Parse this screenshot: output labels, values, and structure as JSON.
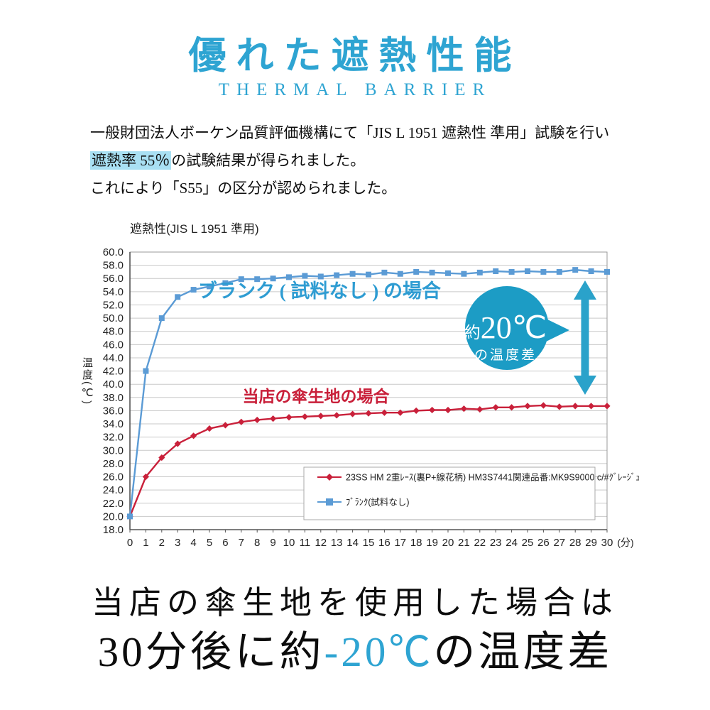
{
  "header": {
    "title": "優れた遮熱性能",
    "subtitle": "THERMAL BARRIER"
  },
  "intro": {
    "line1": "一般財団法人ボーケン品質評価機構にて「JIS L 1951 遮熱性 準用」試験を行い",
    "line2_highlight": "遮熱率 55％",
    "line2_rest": "の試験結果が得られました。",
    "line3": "これにより「S55」の区分が認められました。"
  },
  "chart_data": {
    "type": "line",
    "title": "遮熱性(JIS L 1951 準用)",
    "x_unit_label": "(分)",
    "y_axis_label": "温度(℃)",
    "x": [
      0,
      1,
      2,
      3,
      4,
      5,
      6,
      7,
      8,
      9,
      10,
      11,
      12,
      13,
      14,
      15,
      16,
      17,
      18,
      19,
      20,
      21,
      22,
      23,
      24,
      25,
      26,
      27,
      28,
      29,
      30
    ],
    "ylim": [
      18.0,
      60.0
    ],
    "y_tick_step": 2.0,
    "grid": true,
    "legend_position": "inside-bottom-right",
    "series": [
      {
        "name": "23SS HM 2重ﾚｰｽ(裏P+線花柄) HM3S7441関連品番:MK9S9000 c/#ｸﾞﾚｰｼﾞｭ",
        "color": "#c9203a",
        "marker": "diamond",
        "values": [
          20.0,
          26.0,
          28.9,
          31.0,
          32.2,
          33.3,
          33.8,
          34.3,
          34.6,
          34.8,
          35.0,
          35.1,
          35.2,
          35.3,
          35.5,
          35.6,
          35.7,
          35.7,
          36.0,
          36.1,
          36.1,
          36.3,
          36.2,
          36.5,
          36.5,
          36.7,
          36.8,
          36.6,
          36.7,
          36.7,
          36.7
        ]
      },
      {
        "name": "ﾌﾞﾗﾝｸ(試料なし)",
        "color": "#5b9bd5",
        "marker": "square",
        "values": [
          20.0,
          42.0,
          50.0,
          53.2,
          54.3,
          54.8,
          55.3,
          55.9,
          55.9,
          56.0,
          56.2,
          56.4,
          56.3,
          56.5,
          56.7,
          56.6,
          56.9,
          56.7,
          57.0,
          56.9,
          56.8,
          56.7,
          56.9,
          57.1,
          57.0,
          57.1,
          57.0,
          57.0,
          57.3,
          57.1,
          57.0
        ]
      }
    ],
    "series_labels": [
      {
        "text": "ブランク ( 試料なし ) の場合",
        "color": "#2e9cd2"
      },
      {
        "text": "当店の傘生地の場合",
        "color": "#c9203a"
      }
    ],
    "annotation": {
      "line1_small": "約",
      "line1_big": "20℃",
      "line2": "の温度差",
      "circle_color": "#1c9cc5",
      "arrow_color": "#2aa2ca"
    }
  },
  "footer": {
    "line1": "当店の傘生地を使用した場合は",
    "line2_pre": "30分後に約",
    "line2_highlight": "-20℃",
    "line2_post": "の温度差"
  },
  "colors": {
    "accent": "#2ea4d2",
    "highlight_bg": "#a9e0f3",
    "grid": "#c9c9c9",
    "plot_border": "#999999",
    "axis": "#555555"
  }
}
